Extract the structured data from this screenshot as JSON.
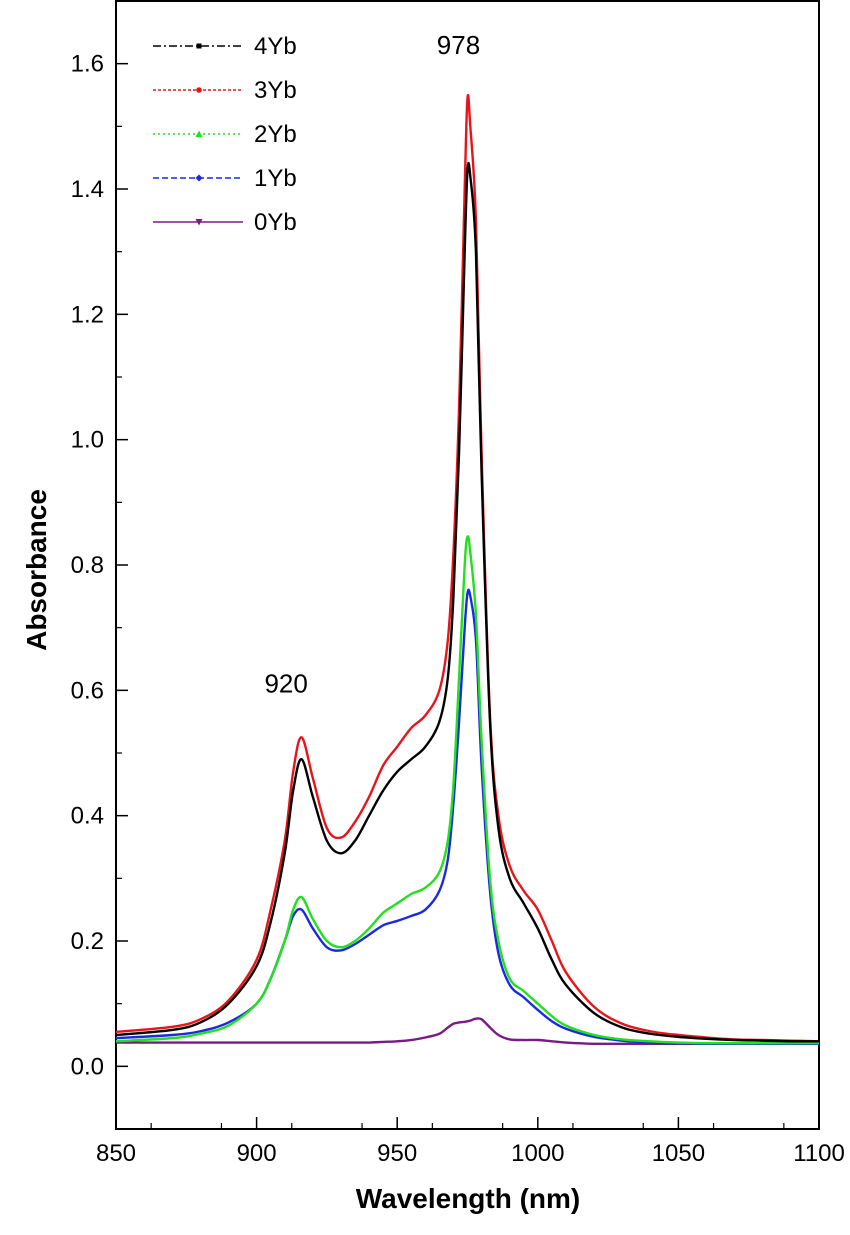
{
  "chart_data": {
    "type": "line",
    "title": "",
    "xlabel": "Wavelength (nm)",
    "ylabel": "Absorbance",
    "xlim": [
      850,
      1100
    ],
    "ylim": [
      -0.1,
      1.7
    ],
    "x_ticks": [
      850,
      900,
      950,
      1000,
      1050,
      1100
    ],
    "x_tick_labels": [
      "850",
      "900",
      "950",
      "1000",
      "1050",
      "1100"
    ],
    "y_ticks": [
      0.0,
      0.2,
      0.4,
      0.6,
      0.8,
      1.0,
      1.2,
      1.4,
      1.6
    ],
    "y_tick_labels": [
      "0.0",
      "0.2",
      "0.4",
      "0.6",
      "0.8",
      "1.0",
      "1.2",
      "1.4",
      "1.6"
    ],
    "grid": false,
    "legend_position": "top-left",
    "annotations": [
      {
        "text": "978",
        "x": 975,
        "y": 1.63
      },
      {
        "text": "920",
        "x": 913,
        "y": 0.6
      }
    ],
    "x": [
      850,
      870,
      880,
      890,
      900,
      905,
      910,
      913,
      916,
      920,
      925,
      930,
      935,
      940,
      945,
      950,
      955,
      960,
      965,
      968,
      970,
      972,
      974,
      975,
      976,
      978,
      980,
      983,
      986,
      990,
      995,
      1000,
      1005,
      1010,
      1020,
      1030,
      1040,
      1050,
      1060,
      1070,
      1080,
      1090,
      1100
    ],
    "series": [
      {
        "name": "4Yb",
        "color": "#000000",
        "dash": "8,3,2,3",
        "values": [
          0.05,
          0.058,
          0.07,
          0.1,
          0.16,
          0.23,
          0.34,
          0.44,
          0.49,
          0.43,
          0.36,
          0.34,
          0.36,
          0.4,
          0.44,
          0.47,
          0.49,
          0.51,
          0.55,
          0.62,
          0.75,
          0.98,
          1.3,
          1.43,
          1.42,
          1.3,
          0.95,
          0.55,
          0.38,
          0.3,
          0.26,
          0.22,
          0.17,
          0.13,
          0.085,
          0.062,
          0.052,
          0.047,
          0.044,
          0.042,
          0.041,
          0.04,
          0.04
        ]
      },
      {
        "name": "3Yb",
        "color": "#e8141c",
        "dash": "3,2",
        "values": [
          0.055,
          0.063,
          0.075,
          0.105,
          0.17,
          0.25,
          0.36,
          0.47,
          0.525,
          0.46,
          0.38,
          0.365,
          0.39,
          0.43,
          0.48,
          0.51,
          0.54,
          0.56,
          0.6,
          0.68,
          0.82,
          1.05,
          1.4,
          1.545,
          1.5,
          1.35,
          0.98,
          0.56,
          0.4,
          0.32,
          0.28,
          0.25,
          0.2,
          0.15,
          0.095,
          0.068,
          0.056,
          0.05,
          0.046,
          0.043,
          0.042,
          0.041,
          0.04
        ]
      },
      {
        "name": "2Yb",
        "color": "#22e01e",
        "dash": "2,3",
        "values": [
          0.04,
          0.045,
          0.052,
          0.065,
          0.1,
          0.14,
          0.2,
          0.25,
          0.27,
          0.235,
          0.2,
          0.19,
          0.2,
          0.22,
          0.245,
          0.26,
          0.275,
          0.285,
          0.31,
          0.36,
          0.45,
          0.62,
          0.8,
          0.845,
          0.82,
          0.72,
          0.52,
          0.3,
          0.2,
          0.14,
          0.12,
          0.1,
          0.08,
          0.065,
          0.05,
          0.043,
          0.04,
          0.038,
          0.037,
          0.037,
          0.037,
          0.037,
          0.037
        ]
      },
      {
        "name": "1Yb",
        "color": "#1a2ae0",
        "dash": "6,3",
        "values": [
          0.045,
          0.05,
          0.056,
          0.07,
          0.1,
          0.14,
          0.2,
          0.24,
          0.25,
          0.22,
          0.19,
          0.185,
          0.195,
          0.21,
          0.225,
          0.232,
          0.24,
          0.25,
          0.28,
          0.33,
          0.42,
          0.55,
          0.7,
          0.755,
          0.75,
          0.68,
          0.48,
          0.28,
          0.18,
          0.13,
          0.11,
          0.09,
          0.072,
          0.06,
          0.047,
          0.041,
          0.038,
          0.037,
          0.036,
          0.036,
          0.036,
          0.036,
          0.036
        ]
      },
      {
        "name": "0Yb",
        "color": "#7a1a86",
        "dash": "",
        "values": [
          0.038,
          0.038,
          0.038,
          0.038,
          0.038,
          0.038,
          0.038,
          0.038,
          0.038,
          0.038,
          0.038,
          0.038,
          0.038,
          0.038,
          0.039,
          0.04,
          0.042,
          0.046,
          0.052,
          0.062,
          0.068,
          0.07,
          0.071,
          0.072,
          0.073,
          0.076,
          0.075,
          0.062,
          0.05,
          0.043,
          0.042,
          0.042,
          0.04,
          0.038,
          0.036,
          0.036,
          0.036,
          0.036,
          0.036,
          0.036,
          0.036,
          0.036,
          0.036
        ]
      }
    ]
  }
}
